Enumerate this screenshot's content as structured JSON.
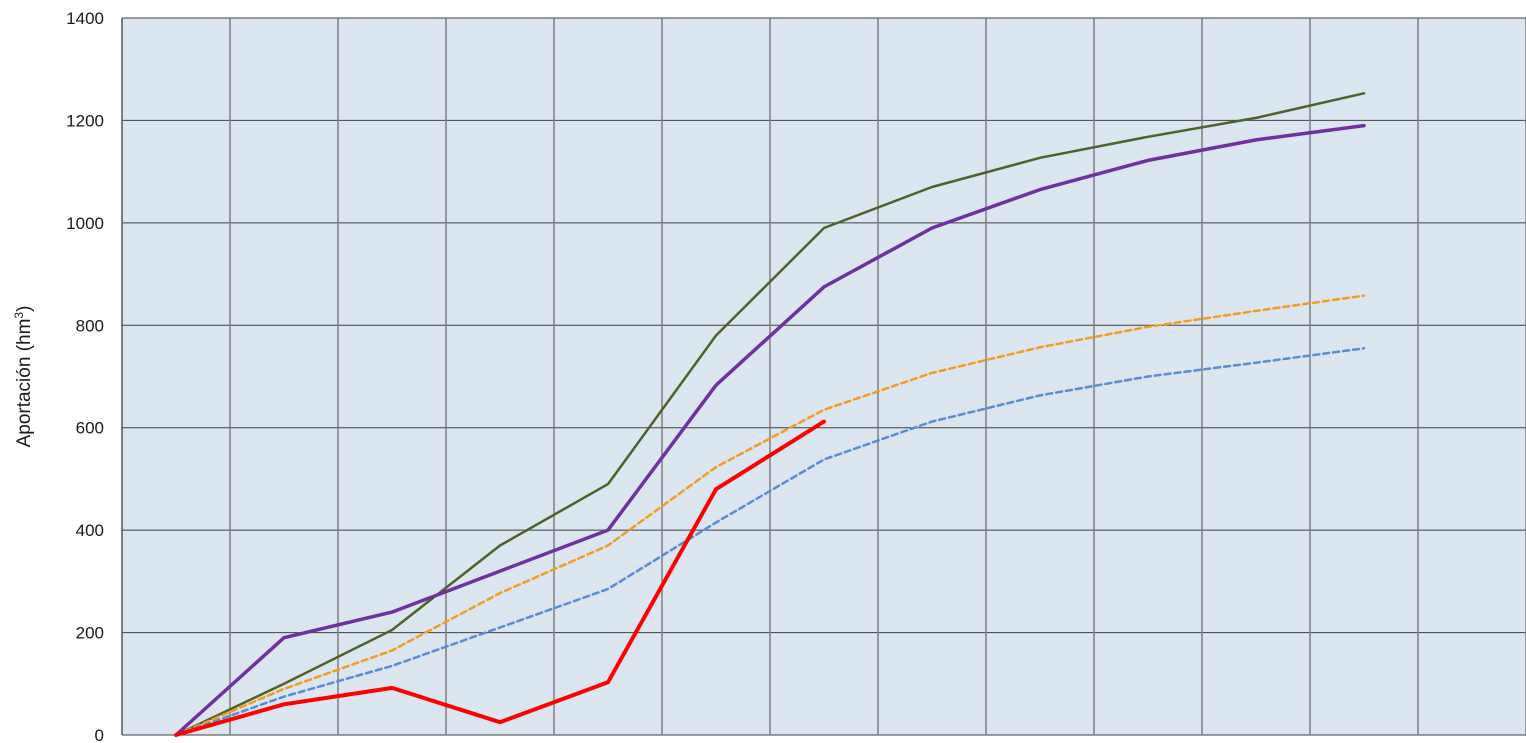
{
  "chart_data": {
    "type": "line",
    "ylabel": "Aportación (hm",
    "ylabel_sup": "3",
    "ylabel_close": ")",
    "ylim": [
      0,
      1400
    ],
    "yticks": [
      0,
      200,
      400,
      600,
      800,
      1000,
      1200,
      1400
    ],
    "x_count": 12,
    "grid": true,
    "plot_background": "#dce6f1",
    "grid_color": "#7f7f7f",
    "series": [
      {
        "color": "#4f6228",
        "dash": "solid",
        "width": 2.5,
        "values": [
          0,
          100,
          205,
          370,
          490,
          780,
          990,
          1070,
          1127,
          1168,
          1205,
          1253
        ]
      },
      {
        "color": "#7030a0",
        "dash": "solid",
        "width": 3.5,
        "values": [
          0,
          190,
          240,
          320,
          400,
          683,
          875,
          990,
          1065,
          1122,
          1162,
          1190
        ]
      },
      {
        "color": "#f59d1e",
        "dash": "dashed",
        "width": 2.5,
        "values": [
          0,
          90,
          165,
          277,
          370,
          523,
          635,
          707,
          757,
          797,
          828,
          858
        ]
      },
      {
        "color": "#558ed5",
        "dash": "dashed",
        "width": 2.5,
        "values": [
          0,
          75,
          135,
          210,
          285,
          415,
          538,
          612,
          663,
          700,
          727,
          755
        ]
      },
      {
        "color": "#ff0000",
        "dash": "solid",
        "width": 4,
        "values": [
          0,
          60,
          92,
          25,
          103,
          480,
          612
        ]
      }
    ]
  }
}
